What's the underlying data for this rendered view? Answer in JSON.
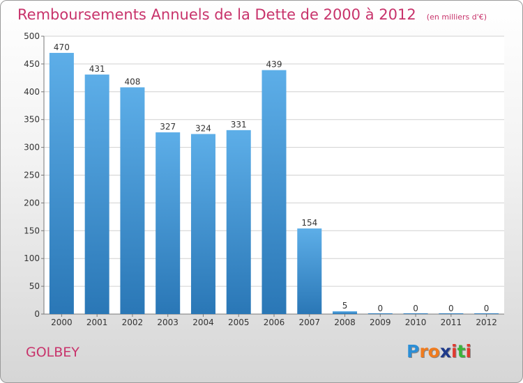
{
  "title": "Remboursements Annuels de la Dette de 2000 à 2012",
  "unit": "(en milliers d'€)",
  "commune": "GOLBEY",
  "logo": {
    "letters": [
      "P",
      "r",
      "o",
      "x",
      "i",
      "t",
      "i"
    ],
    "colors": [
      "#2b8ed6",
      "#f07b1e",
      "#f07b1e",
      "#1e3a8a",
      "#e03a2f",
      "#3bb33b",
      "#e03a2f"
    ]
  },
  "colors": {
    "bar_top": "#5daee8",
    "bar_bottom": "#2a77b6",
    "accent": "#c8336b"
  },
  "chart_data": {
    "type": "bar",
    "categories": [
      "2000",
      "2001",
      "2002",
      "2003",
      "2004",
      "2005",
      "2006",
      "2007",
      "2008",
      "2009",
      "2010",
      "2011",
      "2012"
    ],
    "values": [
      470,
      431,
      408,
      327,
      324,
      331,
      439,
      154,
      5,
      0,
      0,
      0,
      0
    ],
    "data_labels": [
      "470",
      "431",
      "408",
      "327",
      "324",
      "331",
      "439",
      "154",
      "5",
      "0",
      "0",
      "0",
      "0"
    ],
    "yticks": [
      "0",
      "50",
      "100",
      "150",
      "200",
      "250",
      "300",
      "350",
      "400",
      "450",
      "500"
    ],
    "ylim": [
      0,
      500
    ],
    "grid": true
  }
}
